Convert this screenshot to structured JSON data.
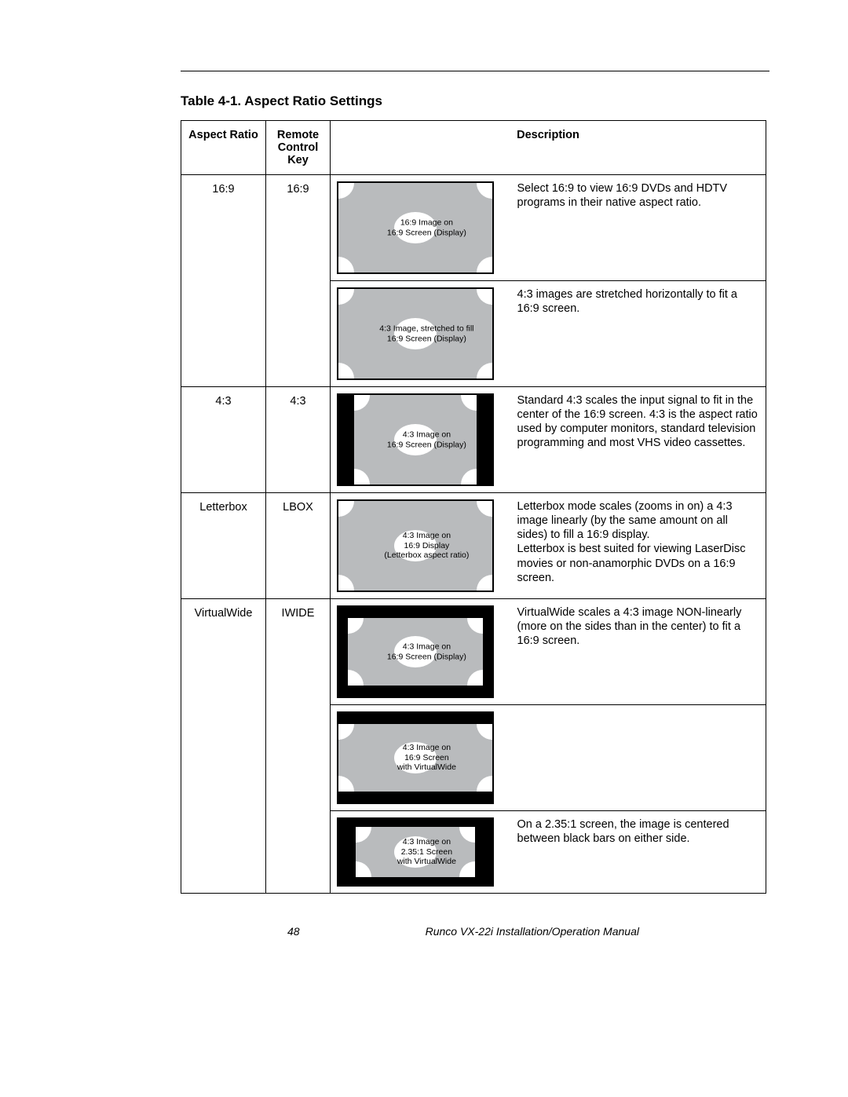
{
  "title": "Table 4-1. Aspect Ratio Settings",
  "headers": {
    "aspect_ratio": "Aspect Ratio",
    "remote_key": "Remote Control Key",
    "description": "Description"
  },
  "rows": [
    {
      "aspect_ratio": "16:9",
      "key": "16:9",
      "diagrams": [
        {
          "screen": "w169",
          "grey": "grey-full",
          "caption": "16:9 Image on\n16:9 Screen (Display)",
          "desc": "Select 16:9 to view 16:9 DVDs and HDTV programs in their native aspect ratio."
        },
        {
          "screen": "w169",
          "grey": "grey-full",
          "caption": "4:3 Image, stretched to fill\n16:9 Screen (Display)",
          "desc": "4:3 images are stretched horizontally to fit a 16:9 screen."
        }
      ]
    },
    {
      "aspect_ratio": "4:3",
      "key": "4:3",
      "diagrams": [
        {
          "screen": "w169",
          "grey": "grey-pillar",
          "caption": "4:3 Image on\n16:9 Screen (Display)",
          "desc": "Standard 4:3 scales the input signal to fit in the center of the 16:9 screen. 4:3 is the aspect ratio used by computer monitors, standard television programming and most VHS video cassettes."
        }
      ]
    },
    {
      "aspect_ratio": "Letterbox",
      "key": "LBOX",
      "diagrams": [
        {
          "screen": "w169",
          "grey": "grey-full",
          "caption": "4:3 Image on\n16:9 Display\n(Letterbox aspect ratio)",
          "desc": "Letterbox mode scales (zooms in on) a 4:3 image linearly (by the same amount on all sides) to fill a 16:9 display.\nLetterbox is best suited for viewing LaserDisc movies or non-anamorphic DVDs on a 16:9 screen."
        }
      ]
    },
    {
      "aspect_ratio": "VirtualWide",
      "key": "IWIDE",
      "diagrams": [
        {
          "screen": "w169",
          "grey": "grey-vw",
          "caption": "4:3 Image on\n16:9 Screen (Display)",
          "desc": "VirtualWide scales a 4:3 image NON-linearly (more on the sides than in the center) to fit a 16:9 screen."
        },
        {
          "screen": "w169",
          "grey": "grey-letter",
          "caption": "4:3 Image on\n16:9 Screen\nwith VirtualWide",
          "desc": ""
        },
        {
          "screen": "w235",
          "grey": "grey-235",
          "caption": "4:3 Image on\n2.35:1 Screen\nwith VirtualWide",
          "desc": "On a 2.35:1 screen, the image is centered between black bars on either side."
        }
      ]
    }
  ],
  "footer": {
    "page": "48",
    "manual": "Runco VX-22i Installation/Operation Manual"
  },
  "colors": {
    "grey": "#b9bbbd",
    "black": "#000000",
    "white": "#ffffff"
  }
}
